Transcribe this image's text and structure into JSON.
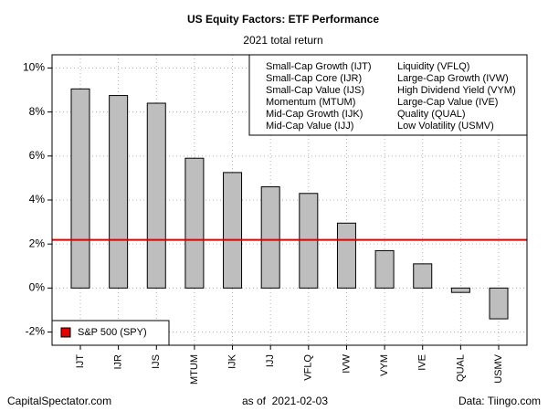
{
  "chart_data": {
    "type": "bar",
    "title": "US Equity Factors: ETF Performance",
    "subtitle": "2021 total return",
    "categories": [
      "IJT",
      "IJR",
      "IJS",
      "MTUM",
      "IJK",
      "IJJ",
      "VFLQ",
      "IVW",
      "VYM",
      "IVE",
      "QUAL",
      "USMV"
    ],
    "values": [
      9.05,
      8.75,
      8.4,
      5.9,
      5.25,
      4.6,
      4.3,
      2.95,
      1.7,
      1.1,
      -0.2,
      -1.4
    ],
    "color": "#bebebe",
    "ylim": [
      -2.6,
      10.6
    ],
    "yticks": [
      {
        "value": -2,
        "label": "-2%"
      },
      {
        "value": 0,
        "label": "0%"
      },
      {
        "value": 2,
        "label": "2%"
      },
      {
        "value": 4,
        "label": "4%"
      },
      {
        "value": 6,
        "label": "6%"
      },
      {
        "value": 8,
        "label": "8%"
      },
      {
        "value": 10,
        "label": "10%"
      }
    ],
    "grid": true,
    "reference": {
      "name": "S&P 500 (SPY)",
      "value": 2.19,
      "color": "#e00000"
    },
    "legend_items": [
      "Small-Cap Growth (IJT)",
      "Small-Cap Core (IJR)",
      "Small-Cap Value (IJS)",
      "Momentum (MTUM)",
      "Mid-Cap Growth (IJK)",
      "Mid-Cap Value (IJJ)",
      "Liquidity (VFLQ)",
      "Large-Cap Growth (IVW)",
      "High Dividend Yield (VYM)",
      "Large-Cap Value (IVE)",
      "Quality (QUAL)",
      "Low Volatility (USMV)"
    ],
    "footer_left": "CapitalSpectator.com",
    "footer_center": "as of  2021-02-03",
    "footer_right": "Data: Tiingo.com"
  }
}
